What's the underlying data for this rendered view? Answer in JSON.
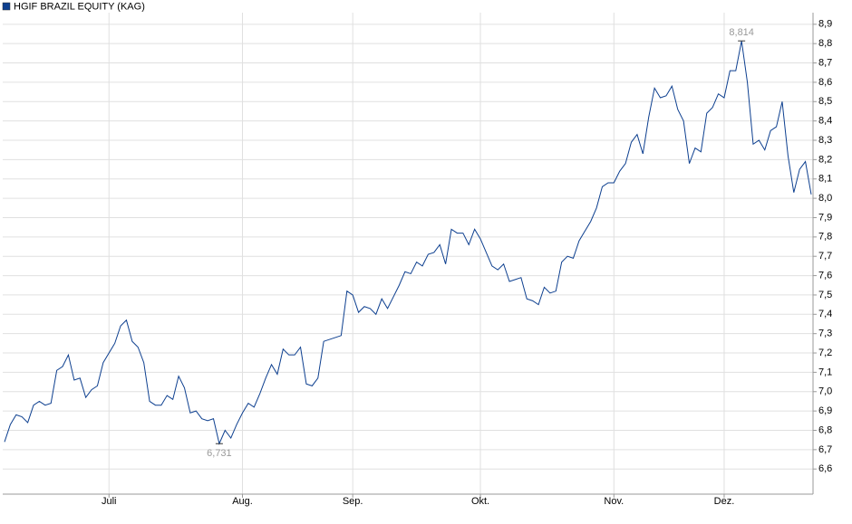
{
  "chart_data": {
    "type": "line",
    "series": [
      {
        "name": "HGIF BRAZIL EQUITY (KAG)",
        "color": "#0d3f8f",
        "values": [
          6.74,
          6.83,
          6.88,
          6.87,
          6.84,
          6.93,
          6.95,
          6.93,
          6.94,
          7.11,
          7.13,
          7.19,
          7.06,
          7.07,
          6.97,
          7.01,
          7.03,
          7.15,
          7.2,
          7.25,
          7.34,
          7.37,
          7.26,
          7.23,
          7.15,
          6.95,
          6.93,
          6.93,
          6.98,
          6.96,
          7.08,
          7.02,
          6.89,
          6.9,
          6.86,
          6.85,
          6.86,
          6.731,
          6.8,
          6.76,
          6.83,
          6.89,
          6.94,
          6.92,
          6.99,
          7.07,
          7.14,
          7.09,
          7.22,
          7.19,
          7.19,
          7.23,
          7.04,
          7.03,
          7.07,
          7.26,
          7.27,
          7.28,
          7.29,
          7.52,
          7.5,
          7.41,
          7.44,
          7.43,
          7.4,
          7.48,
          7.43,
          7.49,
          7.55,
          7.62,
          7.61,
          7.67,
          7.65,
          7.71,
          7.72,
          7.76,
          7.66,
          7.84,
          7.82,
          7.82,
          7.76,
          7.84,
          7.79,
          7.72,
          7.65,
          7.63,
          7.66,
          7.57,
          7.58,
          7.59,
          7.48,
          7.47,
          7.45,
          7.54,
          7.51,
          7.52,
          7.67,
          7.7,
          7.69,
          7.78,
          7.83,
          7.88,
          7.95,
          8.06,
          8.08,
          8.08,
          8.14,
          8.18,
          8.29,
          8.33,
          8.23,
          8.42,
          8.57,
          8.52,
          8.53,
          8.58,
          8.46,
          8.4,
          8.18,
          8.26,
          8.24,
          8.44,
          8.47,
          8.54,
          8.52,
          8.66,
          8.66,
          8.814,
          8.6,
          8.28,
          8.3,
          8.25,
          8.35,
          8.37,
          8.5,
          8.22,
          8.03,
          8.15,
          8.19,
          8.02
        ],
        "value_labels": [
          null,
          null,
          null,
          null,
          null,
          null,
          null,
          null,
          null,
          null,
          null,
          null,
          null,
          null,
          null,
          null,
          null,
          null,
          null,
          null,
          null,
          null,
          null,
          null,
          null,
          null,
          null,
          null,
          null,
          null,
          null,
          null,
          null,
          null,
          null,
          null,
          null,
          "6,731",
          null,
          null,
          null,
          null,
          null,
          null,
          null,
          null,
          null,
          null,
          null,
          null,
          null,
          null,
          null,
          null,
          null,
          null,
          null,
          null,
          null,
          null,
          null,
          null,
          null,
          null,
          null,
          null,
          null,
          null,
          null,
          null,
          null,
          null,
          null,
          null,
          null,
          null,
          null,
          null,
          null,
          null,
          null,
          null,
          null,
          null,
          null,
          null,
          null,
          null,
          null,
          null,
          null,
          null,
          null,
          null,
          null,
          null,
          null,
          null,
          null,
          null,
          null,
          null,
          null,
          null,
          null,
          null,
          null,
          null,
          null,
          null,
          null,
          null,
          null,
          null,
          null,
          null,
          null,
          null,
          null,
          null,
          null,
          null,
          null,
          null,
          null,
          null,
          null,
          "8,814",
          null,
          null,
          null,
          null,
          null,
          null,
          null,
          null,
          null,
          null,
          null,
          null
        ]
      }
    ],
    "xlim": [
      0,
      139
    ],
    "xticks": [
      {
        "value": 18,
        "label": "Juli"
      },
      {
        "value": 41,
        "label": "Aug."
      },
      {
        "value": 60,
        "label": "Sep."
      },
      {
        "value": 82,
        "label": "Okt."
      },
      {
        "value": 105,
        "label": "Nov."
      },
      {
        "value": 124,
        "label": "Dez."
      }
    ],
    "ylim": [
      6.47,
      8.96
    ],
    "yticks": [
      {
        "value": 6.6,
        "label": "6,6"
      },
      {
        "value": 6.7,
        "label": "6,7"
      },
      {
        "value": 6.8,
        "label": "6,8"
      },
      {
        "value": 6.9,
        "label": "6,9"
      },
      {
        "value": 7.0,
        "label": "7,0"
      },
      {
        "value": 7.1,
        "label": "7,1"
      },
      {
        "value": 7.2,
        "label": "7,2"
      },
      {
        "value": 7.3,
        "label": "7,3"
      },
      {
        "value": 7.4,
        "label": "7,4"
      },
      {
        "value": 7.5,
        "label": "7,5"
      },
      {
        "value": 7.6,
        "label": "7,6"
      },
      {
        "value": 7.7,
        "label": "7,7"
      },
      {
        "value": 7.8,
        "label": "7,8"
      },
      {
        "value": 7.9,
        "label": "7,9"
      },
      {
        "value": 8.0,
        "label": "8,0"
      },
      {
        "value": 8.1,
        "label": "8,1"
      },
      {
        "value": 8.2,
        "label": "8,2"
      },
      {
        "value": 8.3,
        "label": "8,3"
      },
      {
        "value": 8.4,
        "label": "8,4"
      },
      {
        "value": 8.5,
        "label": "8,5"
      },
      {
        "value": 8.6,
        "label": "8,6"
      },
      {
        "value": 8.7,
        "label": "8,7"
      },
      {
        "value": 8.8,
        "label": "8,8"
      },
      {
        "value": 8.9,
        "label": "8,9"
      }
    ],
    "grid": true
  }
}
